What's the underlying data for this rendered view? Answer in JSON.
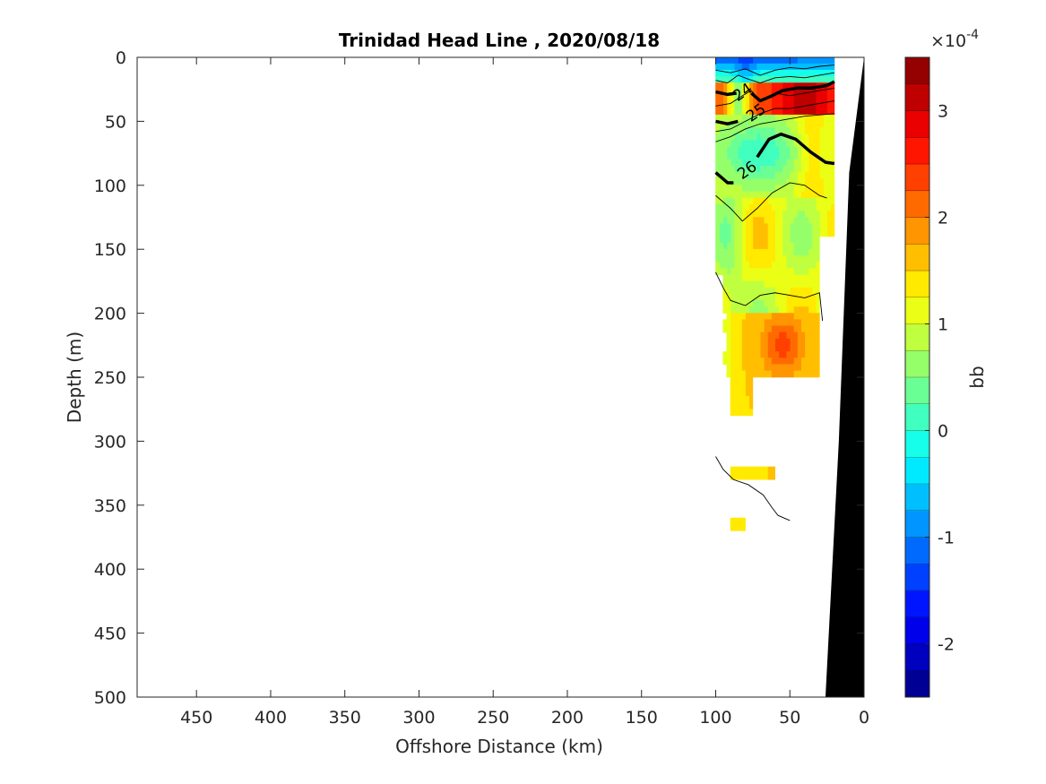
{
  "chart_data": {
    "type": "heatmap",
    "title": "Trinidad Head Line , 2020/08/18",
    "xlabel": "Offshore Distance (km)",
    "ylabel": "Depth (m)",
    "xlim": [
      490,
      0
    ],
    "ylim": [
      0,
      500
    ],
    "x_reversed": true,
    "y_reversed": true,
    "x_ticks": [
      450,
      400,
      350,
      300,
      250,
      200,
      150,
      100,
      50,
      0
    ],
    "y_ticks": [
      0,
      50,
      100,
      150,
      200,
      250,
      300,
      350,
      400,
      450,
      500
    ],
    "colorbar": {
      "label": "bb",
      "exponent_label": "×10",
      "exponent_power": "-4",
      "range": [
        -2.5,
        3.5
      ],
      "ticks": [
        -2,
        -1,
        0,
        1,
        2,
        3
      ],
      "levels": 24,
      "colormap": "jet"
    },
    "contour_labels": [
      {
        "text": "24",
        "x": 82,
        "y": 27
      },
      {
        "text": "25",
        "x": 73,
        "y": 43
      },
      {
        "text": "26",
        "x": 79,
        "y": 88
      }
    ],
    "bathymetry_color": "#000000",
    "grid": false
  }
}
